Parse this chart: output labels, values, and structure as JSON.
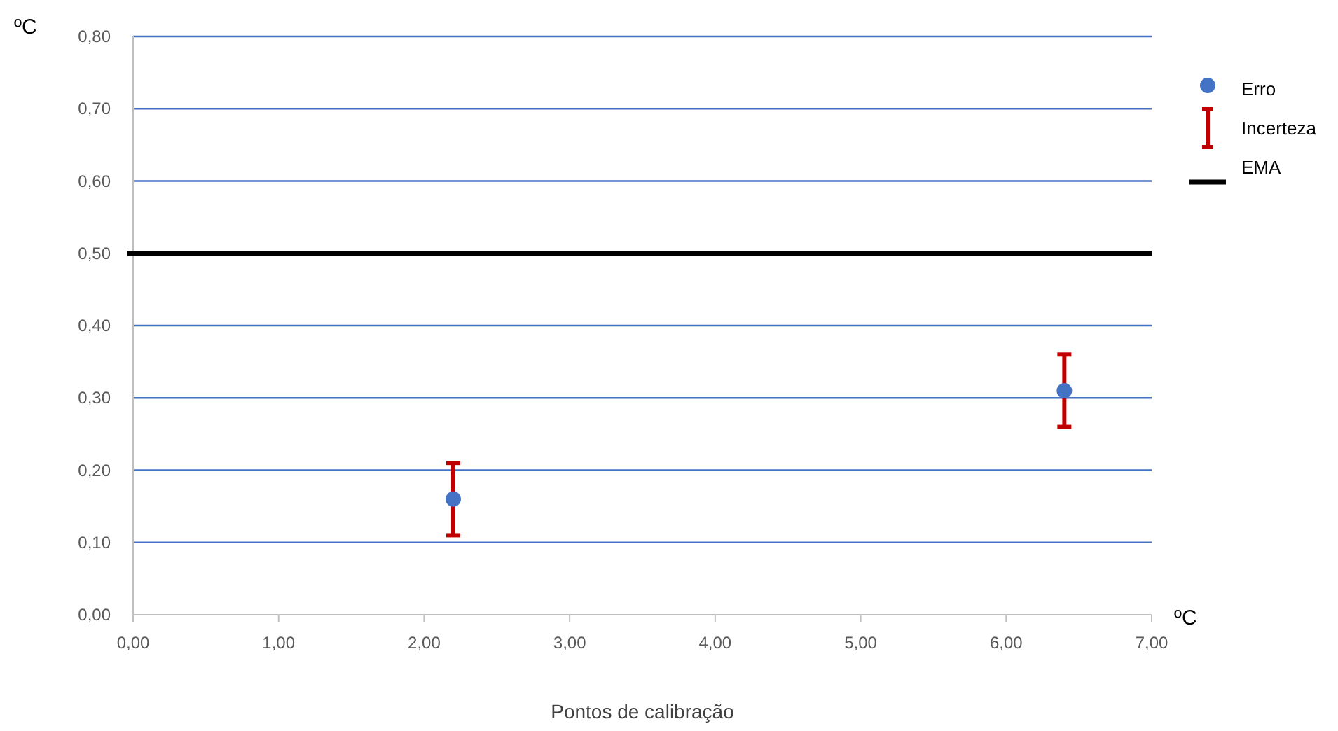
{
  "chart_data": {
    "type": "scatter",
    "ylabel": "ºC",
    "xlabel": "Pontos de calibração",
    "annotations": [
      "ºC",
      "Incerteza"
    ],
    "x": [
      2.2,
      6.4
    ],
    "series": [
      {
        "name": "Erro",
        "color": "#4472c4",
        "values": [
          0.16,
          0.31
        ],
        "errors": [
          0.05,
          0.05
        ]
      }
    ],
    "ref_lines": [
      {
        "axis": "y",
        "value": 0.5,
        "label": "EMA",
        "color": "#000000"
      }
    ],
    "xlim": [
      0,
      7
    ],
    "ylim": [
      0,
      0.8
    ],
    "xticks": [
      {
        "value": 0,
        "label": "0,00"
      },
      {
        "value": 1,
        "label": "1,00"
      },
      {
        "value": 2,
        "label": "2,00"
      },
      {
        "value": 3,
        "label": "3,00"
      },
      {
        "value": 4,
        "label": "4,00"
      },
      {
        "value": 5,
        "label": "5,00"
      },
      {
        "value": 6,
        "label": "6,00"
      },
      {
        "value": 7,
        "label": "7,00"
      }
    ],
    "yticks": [
      {
        "value": 0,
        "label": "0,00"
      },
      {
        "value": 0.1,
        "label": "0,10"
      },
      {
        "value": 0.2,
        "label": "0,20"
      },
      {
        "value": 0.3,
        "label": "0,30"
      },
      {
        "value": 0.4,
        "label": "0,40"
      },
      {
        "value": 0.5,
        "label": "0,50"
      },
      {
        "value": 0.6,
        "label": "0,60"
      },
      {
        "value": 0.7,
        "label": "0,70"
      },
      {
        "value": 0.8,
        "label": "0,80"
      }
    ],
    "grid": "y",
    "legend": "right",
    "marker": "circle"
  }
}
